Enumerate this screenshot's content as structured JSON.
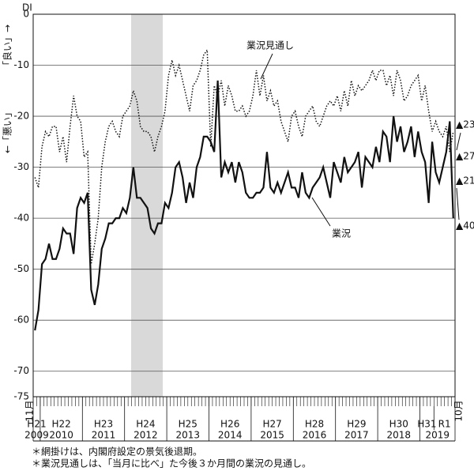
{
  "chart_data": {
    "type": "line",
    "y_unit_label": "DI",
    "axis_labels": [
      "「良い」→",
      "←「悪い」"
    ],
    "start_month": "11月",
    "end_month": "10月",
    "year_labels": [
      {
        "era": "H21",
        "year": "2009"
      },
      {
        "era": "H22",
        "year": "2010"
      },
      {
        "era": "H23",
        "year": "2011"
      },
      {
        "era": "H24",
        "year": "2012"
      },
      {
        "era": "H25",
        "year": "2013"
      },
      {
        "era": "H26",
        "year": "2014"
      },
      {
        "era": "H27",
        "year": "2015"
      },
      {
        "era": "H28",
        "year": "2016"
      },
      {
        "era": "H29",
        "year": "2017"
      },
      {
        "era": "H30",
        "year": "2018"
      },
      {
        "era": "H31",
        "era_after": "R1",
        "year": "2019"
      }
    ],
    "ylim": [
      -75,
      0
    ],
    "yticks": [
      0,
      -10,
      -20,
      -30,
      -40,
      -50,
      -60,
      -70,
      -75
    ],
    "grid": true,
    "series": [
      {
        "name": "業況",
        "color": "#111111",
        "dash": "solid",
        "values": [
          -62,
          -58,
          -49,
          -48,
          -45,
          -48,
          -48,
          -46,
          -42,
          -43,
          -43,
          -47,
          -38,
          -36,
          -37,
          -35,
          -54,
          -57,
          -53,
          -46,
          -44,
          -41,
          -41,
          -40,
          -40,
          -38,
          -39,
          -36,
          -30,
          -36,
          -36,
          -37,
          -38,
          -42,
          -43,
          -41,
          -41,
          -37,
          -38,
          -35,
          -30,
          -29,
          -32,
          -37,
          -33,
          -36,
          -30,
          -28,
          -24,
          -24,
          -25,
          -27,
          -13,
          -32,
          -29,
          -31,
          -29,
          -33,
          -29,
          -31,
          -35,
          -36,
          -36,
          -35,
          -35,
          -34,
          -27,
          -34,
          -35,
          -33,
          -35,
          -33,
          -31,
          -34,
          -34,
          -36,
          -31,
          -35,
          -36,
          -34,
          -33,
          -32,
          -30,
          -33,
          -36,
          -29,
          -31,
          -33,
          -28,
          -31,
          -30,
          -29,
          -27,
          -34,
          -28,
          -29,
          -30,
          -26,
          -29,
          -23,
          -24,
          -29,
          -20,
          -25,
          -22,
          -27,
          -25,
          -22,
          -28,
          -23,
          -27,
          -29,
          -37,
          -25,
          -31,
          -33,
          -30,
          -27,
          -21,
          -40
        ]
      },
      {
        "name": "業況見通し",
        "color": "#111111",
        "dash": "dotted",
        "values": [
          -32,
          -34,
          -26,
          -23,
          -24,
          -22,
          -22,
          -27,
          -24,
          -29,
          -22,
          -16,
          -20,
          -21,
          -28,
          -27,
          -49,
          -45,
          -40,
          -30,
          -25,
          -22,
          -21,
          -23,
          -24,
          -20,
          -19,
          -18,
          -15,
          -17,
          -22,
          -23,
          -23,
          -24,
          -27,
          -24,
          -22,
          -19,
          -12,
          -9,
          -12,
          -10,
          -13,
          -16,
          -19,
          -14,
          -13,
          -11,
          -8,
          -7,
          -26,
          -14,
          -16,
          -13,
          -18,
          -14,
          -16,
          -19,
          -19,
          -18,
          -20,
          -19,
          -16,
          -11,
          -16,
          -12,
          -17,
          -15,
          -18,
          -17,
          -21,
          -23,
          -25,
          -20,
          -19,
          -22,
          -24,
          -20,
          -19,
          -18,
          -21,
          -22,
          -20,
          -18,
          -17,
          -18,
          -16,
          -19,
          -15,
          -18,
          -13,
          -16,
          -14,
          -15,
          -14,
          -13,
          -11,
          -13,
          -11,
          -11,
          -14,
          -12,
          -16,
          -11,
          -13,
          -17,
          -16,
          -14,
          -13,
          -12,
          -17,
          -14,
          -19,
          -23,
          -21,
          -23,
          -24,
          -22,
          -27,
          -23
        ]
      }
    ],
    "annotations": [
      "▲23",
      "▲27",
      "▲21",
      "▲40"
    ],
    "notes": [
      "＊網掛けは、内閣府設定の景気後退期。",
      "＊業況見通しは、「当月に比べ」た今後３か月間の業況の見通し。"
    ]
  }
}
